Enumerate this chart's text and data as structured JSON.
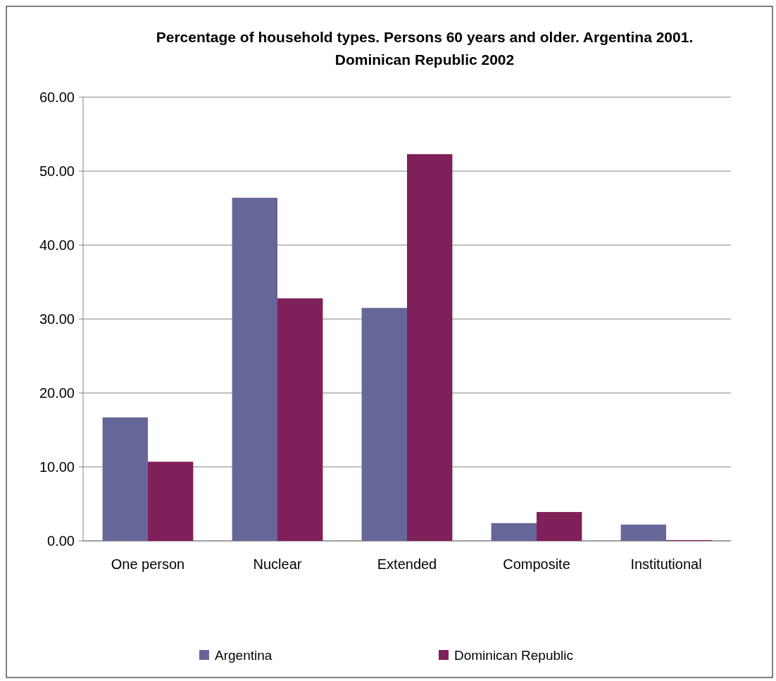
{
  "chart_data": {
    "type": "bar",
    "title": "Percentage of household types. Persons 60 years and older. Argentina 2001. Dominican Republic 2002",
    "categories": [
      "One person",
      "Nuclear",
      "Extended",
      "Composite",
      "Institutional"
    ],
    "series": [
      {
        "name": "Argentina",
        "color": "#666699",
        "values": [
          16.7,
          46.4,
          31.5,
          2.4,
          2.2
        ]
      },
      {
        "name": "Dominican Republic",
        "color": "#80205a",
        "values": [
          10.7,
          32.8,
          52.3,
          3.9,
          0.1
        ]
      }
    ],
    "ylim": [
      0,
      60
    ],
    "yticks": [
      {
        "value": 0,
        "label": "0.00"
      },
      {
        "value": 10,
        "label": "10.00"
      },
      {
        "value": 20,
        "label": "20.00"
      },
      {
        "value": 30,
        "label": "30.00"
      },
      {
        "value": 40,
        "label": "40.00"
      },
      {
        "value": 50,
        "label": "50.00"
      },
      {
        "value": 60,
        "label": "60.00"
      }
    ],
    "grid": "y",
    "legend": "bottom"
  }
}
